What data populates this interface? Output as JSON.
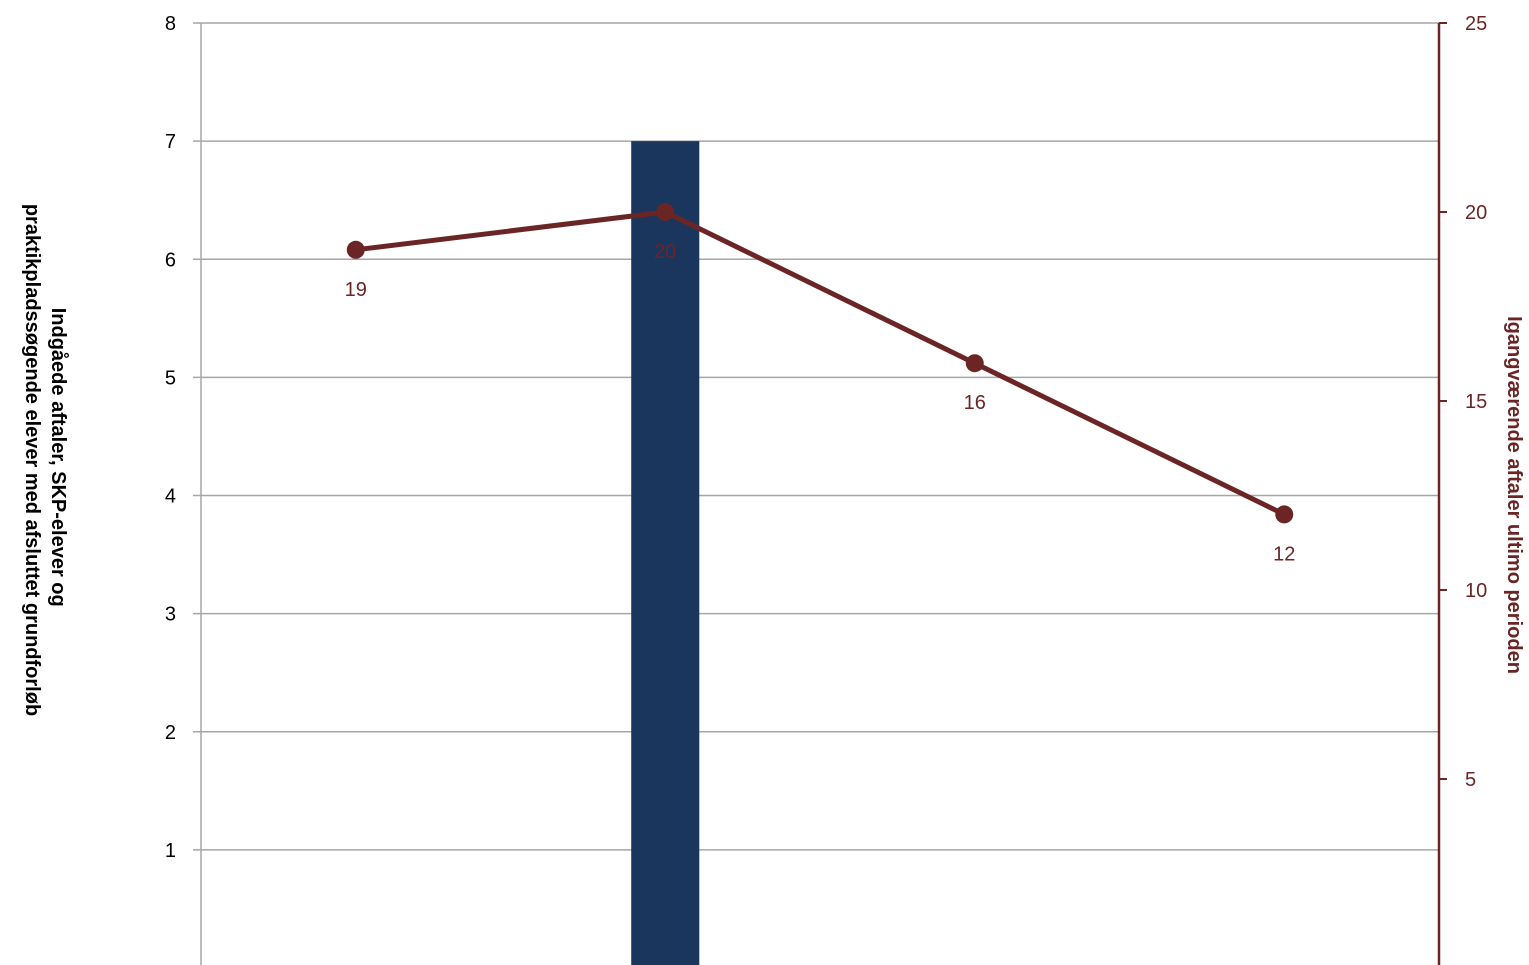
{
  "chart_data": {
    "type": "bar",
    "title": "",
    "colors": {
      "bar": "#1b365d",
      "line": "#6b2525",
      "grid": "#a6a6a6"
    },
    "y_left": {
      "label_lines": [
        "Indgåede aftaler, SKP-elever og",
        "praktikpladssøgende elever med afsluttet grundforløb"
      ],
      "ylim": [
        0,
        8
      ],
      "ticks": [
        1,
        2,
        3,
        4,
        5,
        6,
        7,
        8
      ],
      "tick_labels": [
        "1",
        "2",
        "3",
        "4",
        "5",
        "6",
        "7",
        "8"
      ]
    },
    "y_right": {
      "label": "Igangværende aftaler ultimo perioden",
      "ylim": [
        0,
        25
      ],
      "ticks": [
        5,
        10,
        15,
        20,
        25
      ],
      "tick_labels": [
        "5",
        "10",
        "15",
        "20",
        "25"
      ]
    },
    "bar_series": {
      "axis": "left",
      "values": [
        null,
        7,
        null,
        null
      ]
    },
    "line_series": {
      "axis": "right",
      "values": [
        19,
        20,
        16,
        12
      ],
      "labels": [
        "19",
        "20",
        "16",
        "12"
      ]
    },
    "categories_count": 4
  }
}
